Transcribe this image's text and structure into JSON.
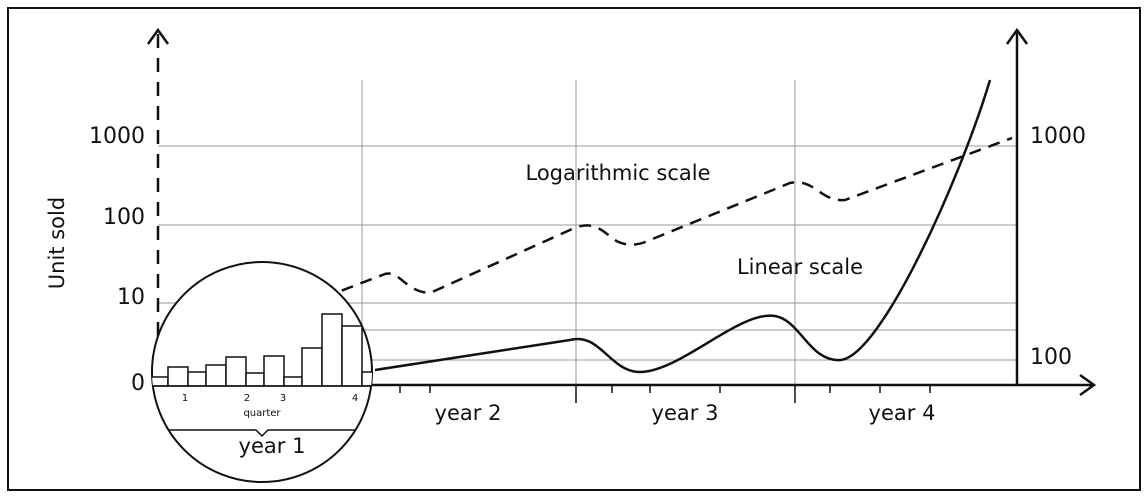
{
  "axis_title": "Unit sold",
  "left_ticks": [
    "1000",
    "100",
    "10",
    "0"
  ],
  "right_ticks": [
    "1000",
    "100"
  ],
  "curve_labels": {
    "log": "Logarithmic scale",
    "linear": "Linear scale"
  },
  "years": [
    "year 1",
    "year 2",
    "year 3",
    "year 4"
  ],
  "inset": {
    "quarters": [
      "1",
      "2",
      "3",
      "4"
    ],
    "axis_label": "quarter"
  }
}
